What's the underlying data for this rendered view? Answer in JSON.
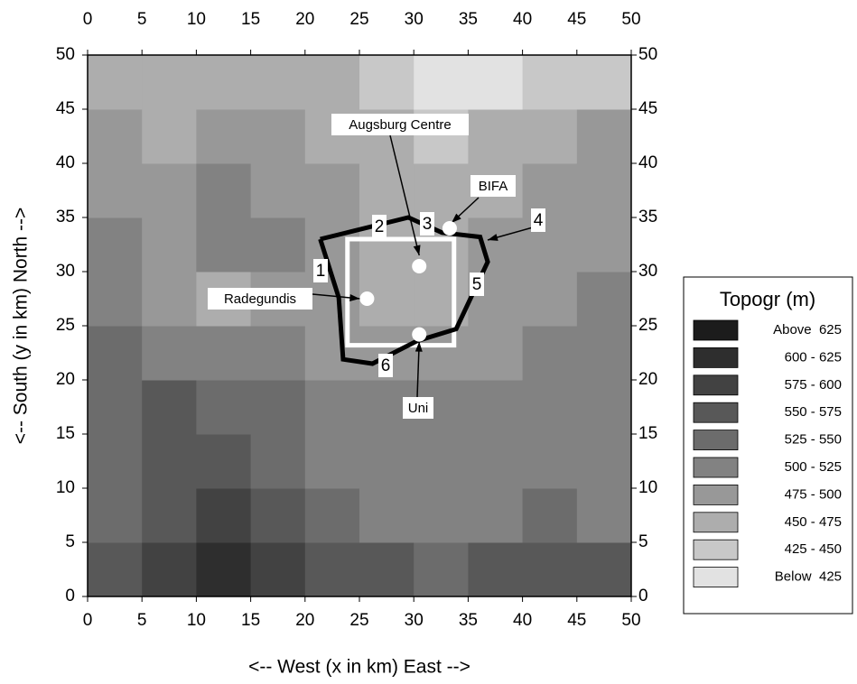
{
  "chart_data": {
    "type": "contour",
    "xlabel": "<-- West (x in km) East -->",
    "ylabel": "<-- South (y in km) North -->",
    "xlim": [
      0,
      50
    ],
    "ylim": [
      0,
      50
    ],
    "xticks": [
      0,
      5,
      10,
      15,
      20,
      25,
      30,
      35,
      40,
      45,
      50
    ],
    "yticks": [
      0,
      5,
      10,
      15,
      20,
      25,
      30,
      35,
      40,
      45,
      50
    ],
    "z": [
      [
        560,
        590,
        600,
        575,
        560,
        550,
        545,
        550,
        565,
        555
      ],
      [
        545,
        565,
        585,
        560,
        530,
        515,
        515,
        520,
        525,
        520
      ],
      [
        540,
        560,
        570,
        545,
        520,
        510,
        510,
        515,
        520,
        515
      ],
      [
        535,
        555,
        545,
        530,
        510,
        505,
        505,
        510,
        515,
        515
      ],
      [
        525,
        520,
        510,
        500,
        495,
        480,
        485,
        495,
        505,
        510
      ],
      [
        510,
        480,
        470,
        475,
        485,
        470,
        465,
        480,
        495,
        500
      ],
      [
        500,
        490,
        505,
        510,
        495,
        465,
        460,
        475,
        490,
        495
      ],
      [
        490,
        485,
        500,
        495,
        480,
        460,
        455,
        465,
        480,
        490
      ],
      [
        480,
        470,
        490,
        475,
        465,
        455,
        440,
        450,
        470,
        475
      ],
      [
        460,
        455,
        470,
        465,
        460,
        440,
        420,
        420,
        445,
        440
      ]
    ],
    "levels": [
      425,
      450,
      475,
      500,
      525,
      550,
      575,
      600,
      625
    ],
    "legend": {
      "title": "Topogr (m)",
      "labels": [
        "Above  625",
        "600 - 625",
        "575 - 600",
        "550 - 575",
        "525 - 550",
        "500 - 525",
        "475 - 500",
        "450 - 475",
        "425 - 450",
        "Below  425"
      ],
      "colors": [
        "#1c1c1c",
        "#2e2e2e",
        "#424242",
        "#585858",
        "#6c6c6c",
        "#828282",
        "#989898",
        "#adadad",
        "#c8c8c8",
        "#e2e2e2"
      ]
    },
    "route": {
      "x": [
        21.4,
        29.5,
        32.6,
        36.1,
        36.8,
        33.9,
        30.3,
        26.2,
        23.5,
        23.1,
        21.4
      ],
      "y": [
        33.0,
        35.0,
        33.6,
        33.2,
        30.9,
        24.7,
        23.6,
        21.5,
        21.9,
        27.6,
        33.0
      ]
    },
    "route_labels": [
      "1",
      "2",
      "3",
      "4",
      "5",
      "6"
    ],
    "box": {
      "x": [
        23.9,
        33.7
      ],
      "y": [
        23.2,
        33.0
      ]
    },
    "sites": [
      {
        "name": "Augsburg Centre",
        "x": 30.5,
        "y": 30.5
      },
      {
        "name": "Radegundis",
        "x": 25.7,
        "y": 27.5
      },
      {
        "name": "Uni",
        "x": 30.5,
        "y": 24.2
      },
      {
        "name": "BIFA",
        "x": 33.3,
        "y": 34.0
      }
    ]
  }
}
